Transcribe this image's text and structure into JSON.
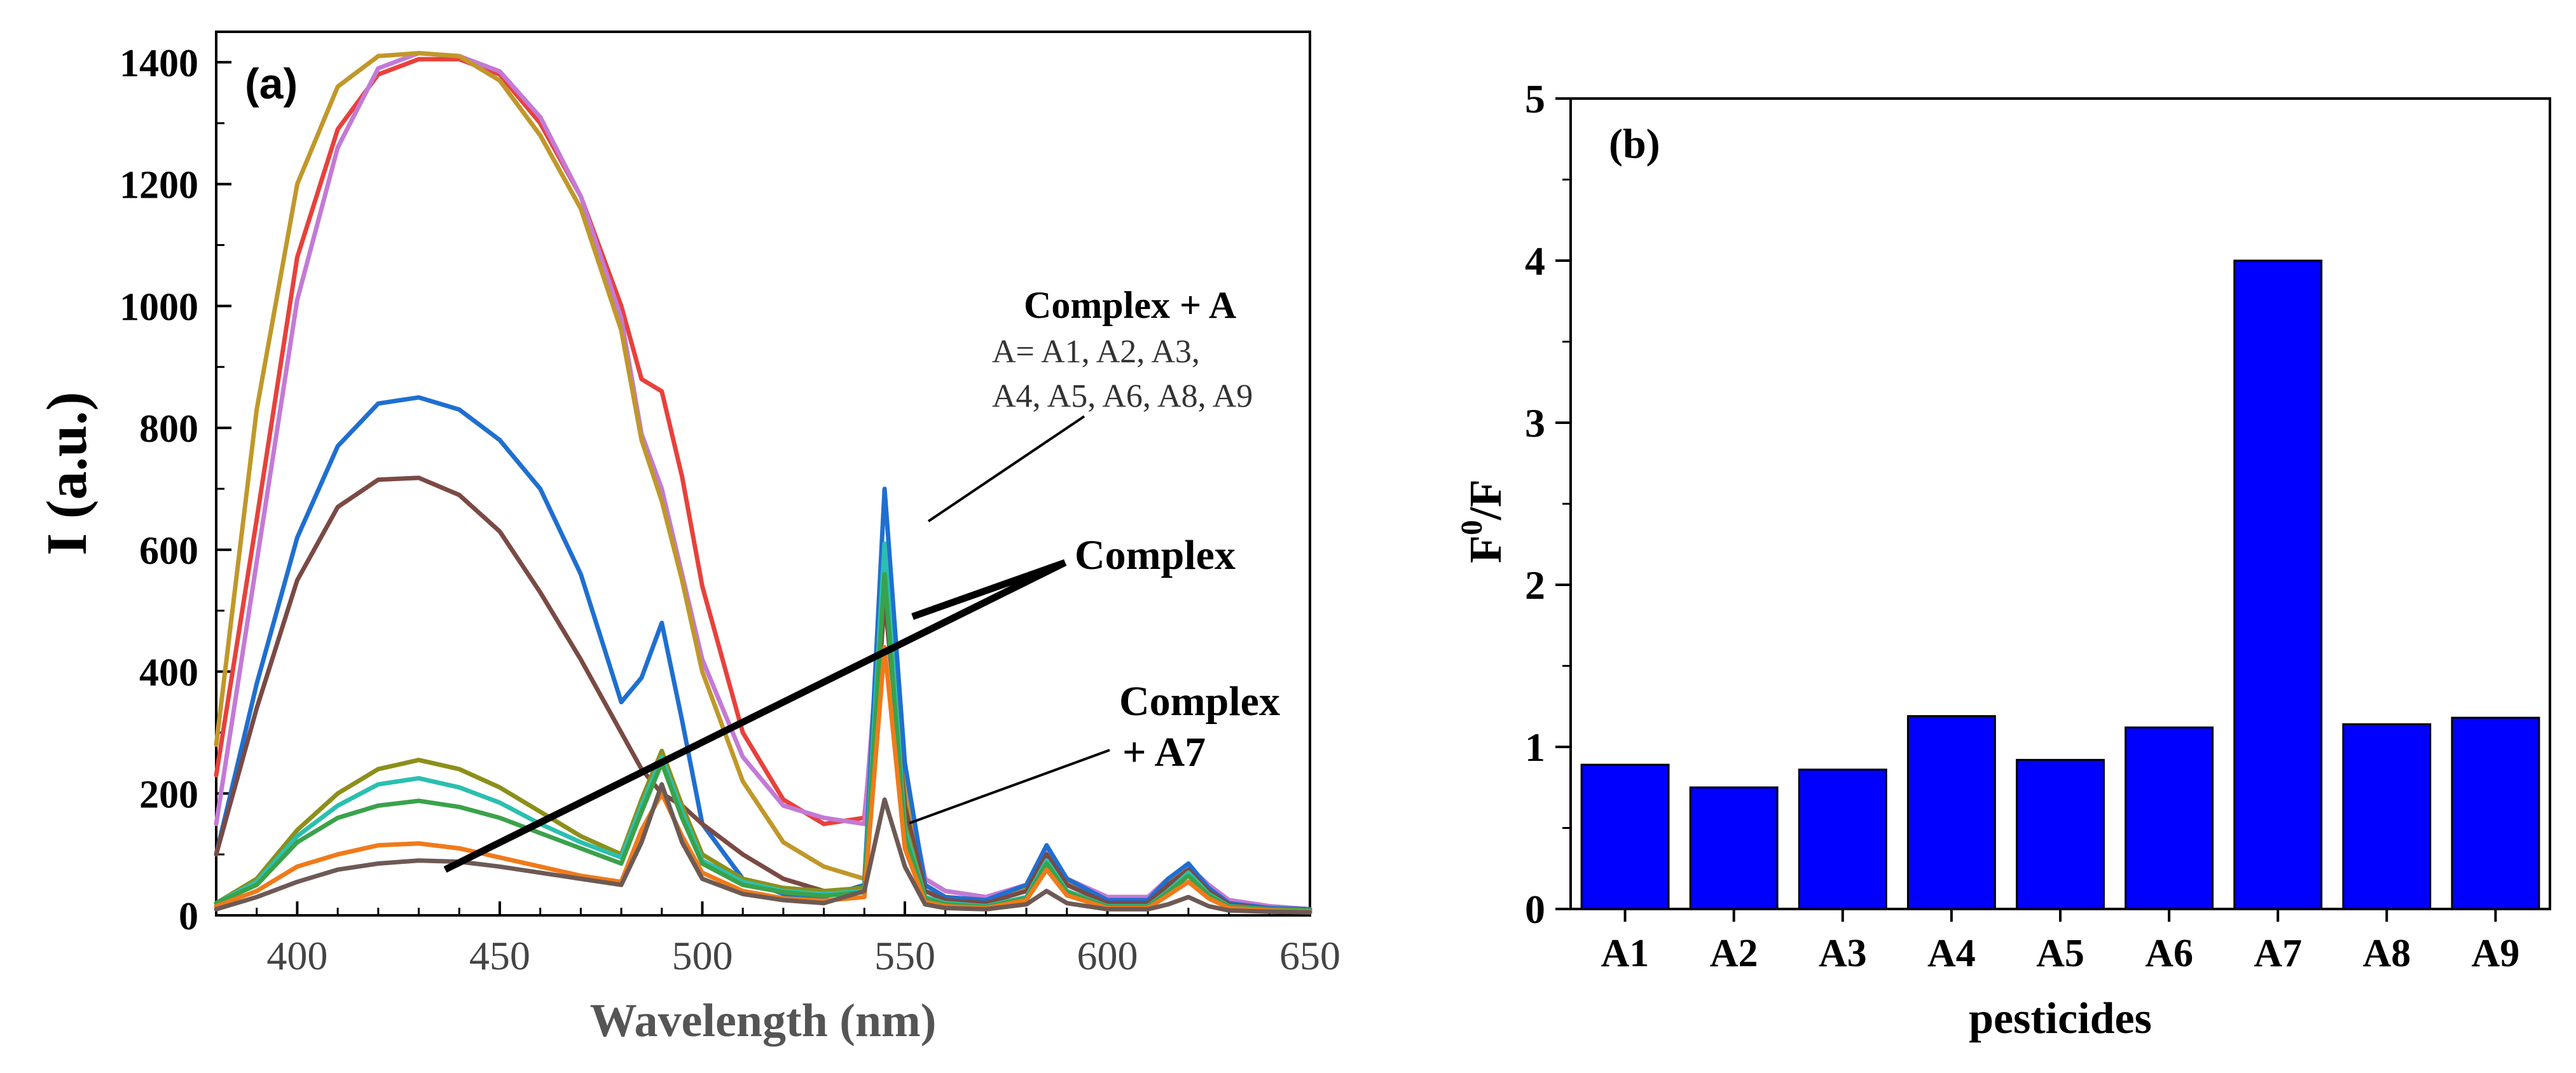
{
  "chart_data": [
    {
      "type": "line",
      "panel_label": "(a)",
      "xlabel": "Wavelength (nm)",
      "ylabel": "I (a.u.)",
      "xlim": [
        380,
        650
      ],
      "ylim": [
        0,
        1450
      ],
      "xticks": [
        400,
        450,
        500,
        550,
        600,
        650
      ],
      "yticks": [
        0,
        200,
        400,
        600,
        800,
        1000,
        1200,
        1400
      ],
      "x": [
        380,
        390,
        400,
        410,
        420,
        430,
        440,
        450,
        460,
        470,
        480,
        485,
        490,
        495,
        500,
        510,
        520,
        530,
        540,
        545,
        550,
        555,
        560,
        570,
        580,
        585,
        590,
        600,
        610,
        615,
        620,
        625,
        630,
        640,
        650
      ],
      "series": [
        {
          "name": "Complex + A (red)",
          "color": "#e8413c",
          "values": [
            230,
            650,
            1080,
            1290,
            1380,
            1405,
            1405,
            1380,
            1300,
            1180,
            1000,
            880,
            860,
            720,
            540,
            300,
            190,
            150,
            160,
            520,
            220,
            60,
            40,
            30,
            50,
            110,
            60,
            30,
            30,
            60,
            80,
            50,
            25,
            15,
            10
          ]
        },
        {
          "name": "Complex + A (violet)",
          "color": "#c37ad6",
          "values": [
            150,
            580,
            1010,
            1260,
            1390,
            1415,
            1410,
            1385,
            1310,
            1180,
            980,
            790,
            700,
            560,
            420,
            260,
            180,
            160,
            150,
            580,
            230,
            60,
            40,
            30,
            50,
            110,
            60,
            30,
            30,
            60,
            80,
            50,
            25,
            15,
            10
          ]
        },
        {
          "name": "Complex + A (olive)",
          "color": "#c0982a",
          "values": [
            280,
            830,
            1200,
            1360,
            1410,
            1415,
            1410,
            1370,
            1280,
            1160,
            960,
            780,
            680,
            550,
            400,
            220,
            120,
            80,
            60,
            590,
            200,
            50,
            30,
            25,
            45,
            100,
            55,
            25,
            25,
            55,
            75,
            45,
            20,
            12,
            10
          ]
        },
        {
          "name": "Complex + A (blue)",
          "color": "#1f6fd1",
          "values": [
            100,
            380,
            620,
            770,
            840,
            850,
            830,
            780,
            700,
            560,
            350,
            390,
            480,
            320,
            150,
            60,
            35,
            30,
            50,
            700,
            250,
            50,
            30,
            25,
            50,
            115,
            60,
            25,
            25,
            60,
            85,
            45,
            20,
            12,
            10
          ]
        },
        {
          "name": "Complex + A (brown)",
          "color": "#7a4a44",
          "values": [
            100,
            340,
            550,
            670,
            715,
            718,
            690,
            630,
            530,
            420,
            300,
            240,
            200,
            180,
            150,
            100,
            60,
            40,
            40,
            520,
            180,
            40,
            25,
            20,
            40,
            100,
            50,
            20,
            20,
            50,
            75,
            40,
            18,
            10,
            8
          ]
        },
        {
          "name": "Complex (olive-green)",
          "color": "#8c8f1a",
          "values": [
            20,
            60,
            140,
            200,
            240,
            255,
            240,
            210,
            170,
            130,
            100,
            190,
            270,
            180,
            100,
            60,
            45,
            40,
            45,
            590,
            150,
            30,
            20,
            15,
            30,
            90,
            40,
            15,
            15,
            40,
            70,
            35,
            15,
            10,
            8
          ]
        },
        {
          "name": "Complex (teal)",
          "color": "#2bbfb0",
          "values": [
            20,
            55,
            130,
            180,
            215,
            225,
            210,
            185,
            150,
            120,
            95,
            180,
            260,
            170,
            90,
            55,
            40,
            35,
            40,
            610,
            140,
            30,
            20,
            15,
            30,
            90,
            40,
            15,
            15,
            40,
            70,
            35,
            15,
            10,
            8
          ]
        },
        {
          "name": "Complex (green)",
          "color": "#3aa24a",
          "values": [
            20,
            50,
            120,
            160,
            180,
            188,
            178,
            160,
            135,
            110,
            85,
            170,
            250,
            160,
            85,
            50,
            38,
            32,
            38,
            560,
            130,
            28,
            18,
            14,
            28,
            85,
            38,
            14,
            14,
            38,
            65,
            33,
            14,
            10,
            8
          ]
        },
        {
          "name": "Complex (orange)",
          "color": "#f07a1a",
          "values": [
            15,
            40,
            80,
            100,
            115,
            118,
            110,
            95,
            80,
            65,
            55,
            140,
            200,
            130,
            70,
            40,
            28,
            24,
            30,
            440,
            110,
            22,
            15,
            12,
            25,
            75,
            33,
            12,
            12,
            33,
            55,
            28,
            12,
            8,
            6
          ]
        },
        {
          "name": "Complex + A7",
          "color": "#6d5a55",
          "values": [
            10,
            30,
            55,
            75,
            85,
            90,
            88,
            80,
            70,
            60,
            50,
            120,
            215,
            120,
            60,
            35,
            25,
            20,
            40,
            190,
            80,
            18,
            12,
            10,
            18,
            40,
            20,
            10,
            10,
            18,
            30,
            15,
            8,
            6,
            5
          ]
        }
      ],
      "annotations": {
        "complex_plus_a": "Complex + A",
        "a_list_line1": "A= A1, A2, A3,",
        "a_list_line2": "A4, A5, A6, A8, A9",
        "complex": "Complex",
        "complex_a7_line1": "Complex",
        "complex_a7_line2": "+ A7"
      }
    },
    {
      "type": "bar",
      "panel_label": "(b)",
      "xlabel": "pesticides",
      "ylabel_base": "F",
      "ylabel_sup": "0",
      "ylabel_tail": "/F",
      "categories": [
        "A1",
        "A2",
        "A3",
        "A4",
        "A5",
        "A6",
        "A7",
        "A8",
        "A9"
      ],
      "values": [
        0.89,
        0.75,
        0.86,
        1.19,
        0.92,
        1.12,
        4.0,
        1.14,
        1.18
      ],
      "ylim": [
        0,
        5
      ],
      "yticks": [
        0,
        1,
        2,
        3,
        4,
        5
      ],
      "bar_color": "#0000ff"
    }
  ]
}
